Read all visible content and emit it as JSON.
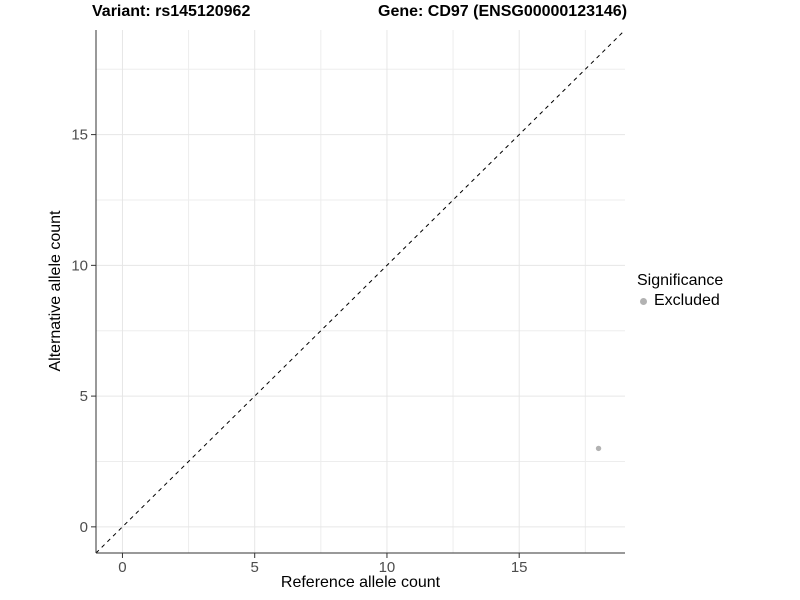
{
  "titles": {
    "variant": "Variant: rs145120962",
    "gene": "Gene: CD97 (ENSG00000123146)"
  },
  "chart_data": {
    "type": "scatter",
    "xlabel": "Reference allele count",
    "ylabel": "Alternative allele count",
    "xlim": [
      -1,
      19
    ],
    "ylim": [
      -1,
      19
    ],
    "x_major_ticks": [
      0,
      5,
      10,
      15
    ],
    "y_major_ticks": [
      0,
      5,
      10,
      15
    ],
    "x_minor_ticks": [
      2.5,
      7.5,
      12.5,
      17.5
    ],
    "y_minor_ticks": [
      2.5,
      7.5,
      12.5,
      17.5
    ],
    "grid": "major-and-minor, very light gray on white",
    "reference_line": {
      "kind": "identity y=x",
      "style": "dashed",
      "color": "#000000"
    },
    "series": [
      {
        "name": "Excluded",
        "color": "#b2b2b2",
        "points": [
          {
            "x": 18,
            "y": 3
          }
        ]
      }
    ],
    "colors": {
      "axis_line": "#333333",
      "tick_label": "#4d4d4d",
      "grid_major": "#e6e6e6",
      "grid_minor": "#ededed",
      "point": "#b2b2b2",
      "background": "#ffffff"
    }
  },
  "legend": {
    "title": "Significance",
    "items": [
      {
        "label": "Excluded",
        "color": "#b2b2b2"
      }
    ]
  }
}
